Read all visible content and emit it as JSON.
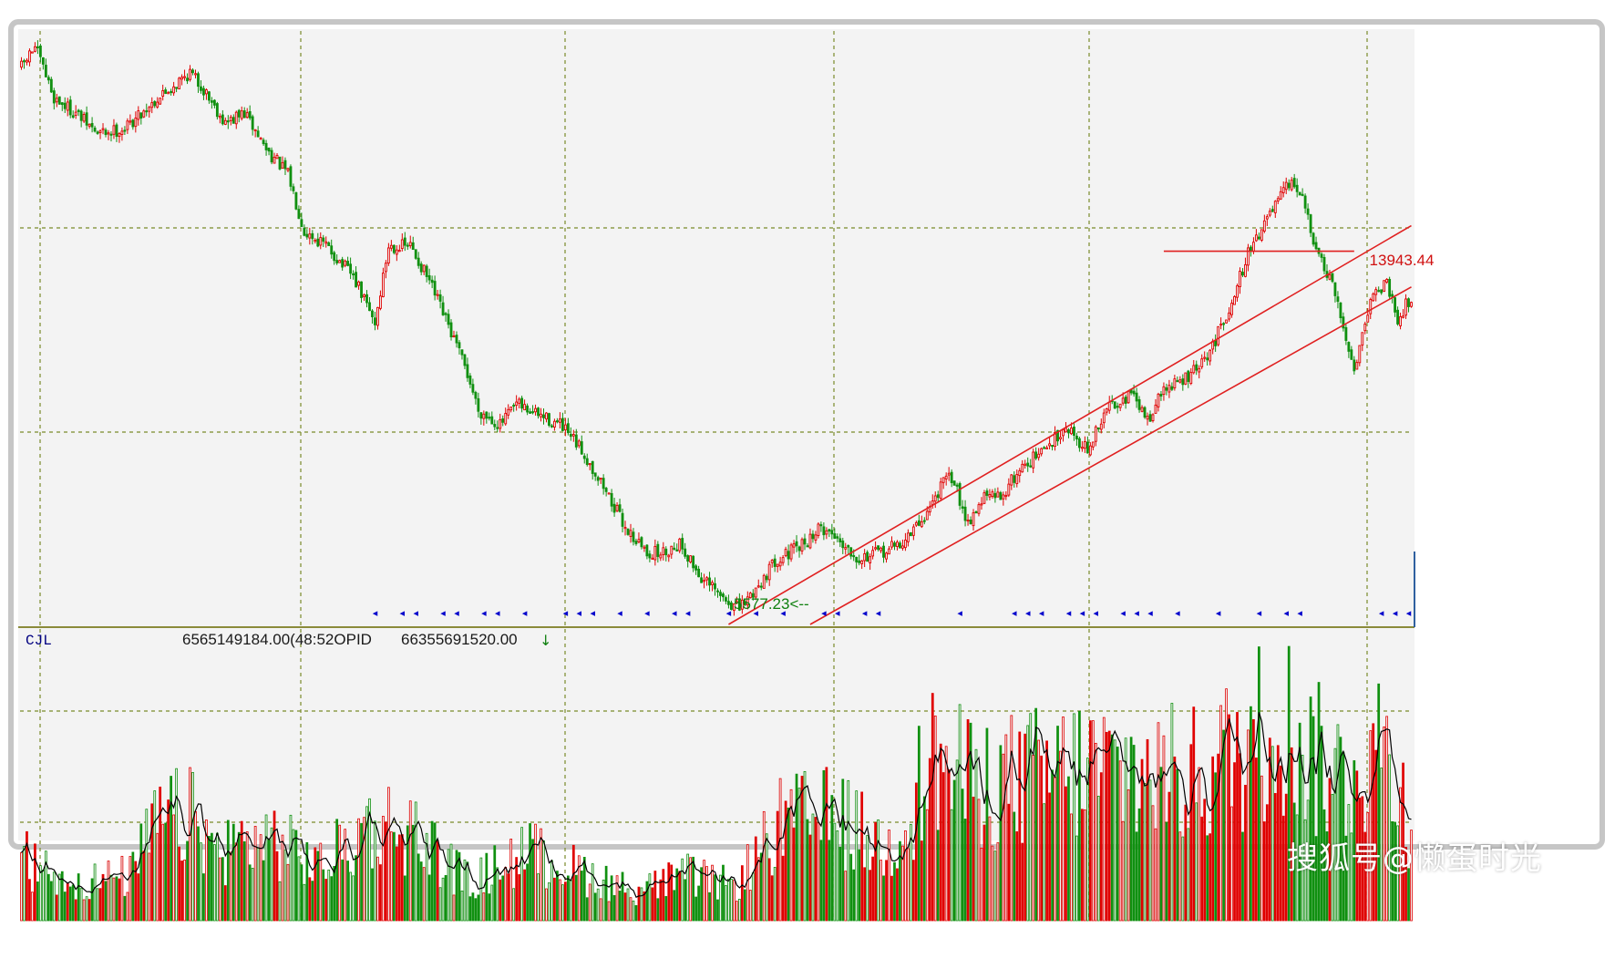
{
  "chart_data": {
    "type": "candlestick",
    "price_panel": {
      "ylim": [
        5300,
        16800
      ],
      "annotations": {
        "high_label": "13943.44",
        "low_label": "5577.23<--",
        "high_value": 13943.44,
        "low_value": 5577.23
      },
      "grid": true,
      "price_anchors": [
        {
          "i": 0,
          "p": 16200
        },
        {
          "i": 5,
          "p": 16600
        },
        {
          "i": 12,
          "p": 15600
        },
        {
          "i": 20,
          "p": 15300
        },
        {
          "i": 28,
          "p": 14900
        },
        {
          "i": 38,
          "p": 15000
        },
        {
          "i": 48,
          "p": 15500
        },
        {
          "i": 62,
          "p": 16100
        },
        {
          "i": 68,
          "p": 15700
        },
        {
          "i": 75,
          "p": 15100
        },
        {
          "i": 82,
          "p": 15300
        },
        {
          "i": 90,
          "p": 14600
        },
        {
          "i": 98,
          "p": 14100
        },
        {
          "i": 104,
          "p": 13000
        },
        {
          "i": 112,
          "p": 12700
        },
        {
          "i": 122,
          "p": 12100
        },
        {
          "i": 130,
          "p": 11200
        },
        {
          "i": 135,
          "p": 12700
        },
        {
          "i": 143,
          "p": 12700
        },
        {
          "i": 150,
          "p": 12000
        },
        {
          "i": 158,
          "p": 11000
        },
        {
          "i": 164,
          "p": 10200
        },
        {
          "i": 168,
          "p": 9500
        },
        {
          "i": 176,
          "p": 9200
        },
        {
          "i": 182,
          "p": 9600
        },
        {
          "i": 190,
          "p": 9400
        },
        {
          "i": 198,
          "p": 9200
        },
        {
          "i": 206,
          "p": 8700
        },
        {
          "i": 214,
          "p": 8000
        },
        {
          "i": 222,
          "p": 7200
        },
        {
          "i": 230,
          "p": 6700
        },
        {
          "i": 236,
          "p": 6700
        },
        {
          "i": 242,
          "p": 6900
        },
        {
          "i": 250,
          "p": 6200
        },
        {
          "i": 258,
          "p": 5800
        },
        {
          "i": 264,
          "p": 5600
        },
        {
          "i": 270,
          "p": 6000
        },
        {
          "i": 278,
          "p": 6600
        },
        {
          "i": 286,
          "p": 6800
        },
        {
          "i": 294,
          "p": 7200
        },
        {
          "i": 300,
          "p": 7000
        },
        {
          "i": 308,
          "p": 6600
        },
        {
          "i": 316,
          "p": 6700
        },
        {
          "i": 324,
          "p": 6900
        },
        {
          "i": 332,
          "p": 7400
        },
        {
          "i": 338,
          "p": 8000
        },
        {
          "i": 342,
          "p": 8200
        },
        {
          "i": 348,
          "p": 7300
        },
        {
          "i": 354,
          "p": 7800
        },
        {
          "i": 360,
          "p": 7800
        },
        {
          "i": 368,
          "p": 8400
        },
        {
          "i": 376,
          "p": 8700
        },
        {
          "i": 384,
          "p": 9200
        },
        {
          "i": 392,
          "p": 8700
        },
        {
          "i": 400,
          "p": 9600
        },
        {
          "i": 408,
          "p": 9800
        },
        {
          "i": 414,
          "p": 9300
        },
        {
          "i": 420,
          "p": 9900
        },
        {
          "i": 428,
          "p": 10100
        },
        {
          "i": 436,
          "p": 10500
        },
        {
          "i": 444,
          "p": 11500
        },
        {
          "i": 452,
          "p": 12700
        },
        {
          "i": 460,
          "p": 13400
        },
        {
          "i": 466,
          "p": 13900
        },
        {
          "i": 470,
          "p": 13800
        },
        {
          "i": 476,
          "p": 12600
        },
        {
          "i": 482,
          "p": 11900
        },
        {
          "i": 490,
          "p": 10300
        },
        {
          "i": 496,
          "p": 11700
        },
        {
          "i": 502,
          "p": 12000
        },
        {
          "i": 506,
          "p": 11300
        },
        {
          "i": 511,
          "p": 11700
        }
      ],
      "trend_lines": [
        {
          "x": [
            260,
            511
          ],
          "y": [
            5300,
            13100
          ]
        },
        {
          "x": [
            290,
            511
          ],
          "y": [
            5300,
            11900
          ]
        }
      ],
      "horizontal_line": {
        "x": [
          420,
          490
        ],
        "y": 12600
      }
    },
    "volume_panel": {
      "label": "CJL",
      "readouts": [
        "6565149184.00(48:52OPID",
        "66355691520.00"
      ],
      "arrow_glyph": "↓",
      "ylim": [
        0,
        100
      ],
      "volume_anchors": [
        {
          "i": 0,
          "v": 25
        },
        {
          "i": 20,
          "v": 15
        },
        {
          "i": 40,
          "v": 18
        },
        {
          "i": 50,
          "v": 40
        },
        {
          "i": 62,
          "v": 42
        },
        {
          "i": 72,
          "v": 28
        },
        {
          "i": 90,
          "v": 34
        },
        {
          "i": 110,
          "v": 22
        },
        {
          "i": 130,
          "v": 40
        },
        {
          "i": 145,
          "v": 35
        },
        {
          "i": 165,
          "v": 15
        },
        {
          "i": 185,
          "v": 28
        },
        {
          "i": 205,
          "v": 20
        },
        {
          "i": 225,
          "v": 12
        },
        {
          "i": 245,
          "v": 18
        },
        {
          "i": 262,
          "v": 14
        },
        {
          "i": 280,
          "v": 40
        },
        {
          "i": 300,
          "v": 42
        },
        {
          "i": 318,
          "v": 28
        },
        {
          "i": 335,
          "v": 65
        },
        {
          "i": 350,
          "v": 55
        },
        {
          "i": 372,
          "v": 58
        },
        {
          "i": 392,
          "v": 62
        },
        {
          "i": 412,
          "v": 60
        },
        {
          "i": 430,
          "v": 58
        },
        {
          "i": 450,
          "v": 70
        },
        {
          "i": 462,
          "v": 86
        },
        {
          "i": 472,
          "v": 68
        },
        {
          "i": 486,
          "v": 58
        },
        {
          "i": 500,
          "v": 72
        },
        {
          "i": 511,
          "v": 40
        }
      ]
    },
    "n_candles": 512
  },
  "colors": {
    "background": "#f3f3f3",
    "frame_border": "#bfbfbf",
    "grid": "#7a8a2a",
    "up": "#e00000",
    "down": "#109010",
    "trend_line": "#e02020",
    "marker": "#0000cc",
    "label_blue": "#000080",
    "label_green": "#108010",
    "label_red": "#d01010",
    "ma_line": "#000000"
  },
  "watermark": "搜狐号@懒蛋时光"
}
